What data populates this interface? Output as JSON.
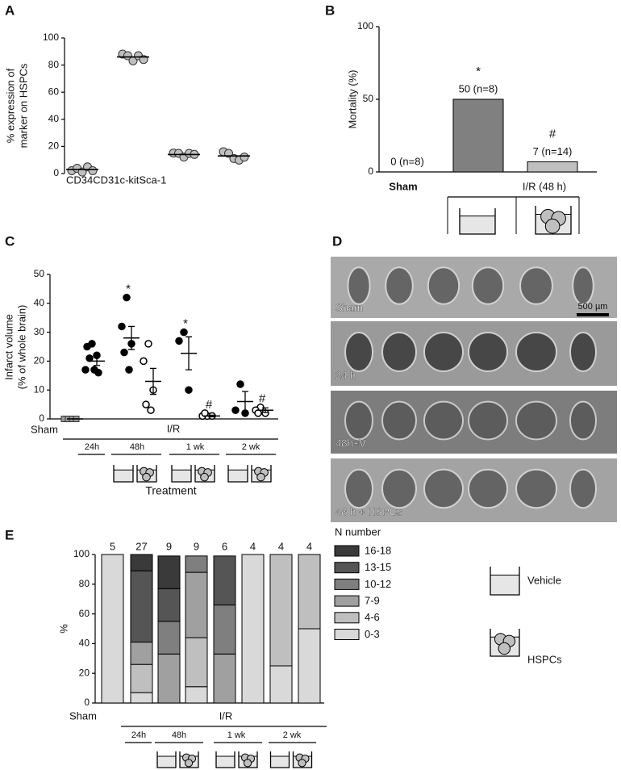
{
  "chart_data": [
    {
      "panel": "A",
      "type": "scatter",
      "ylabel": [
        "% expression of",
        "marker on HSPCs"
      ],
      "categories": [
        "CD34",
        "CD31",
        "c-kit",
        "Sca-1"
      ],
      "points": [
        [
          3,
          3,
          2,
          4,
          3
        ],
        [
          89,
          86,
          84,
          86,
          85
        ],
        [
          16,
          14,
          13,
          14,
          15
        ],
        [
          17,
          14,
          12,
          9,
          13
        ]
      ],
      "means": [
        3,
        86,
        14,
        13
      ],
      "color": "#bfbfbf",
      "ylim": [
        0,
        100
      ],
      "yticks": [
        0,
        20,
        40,
        60,
        80,
        100
      ]
    },
    {
      "panel": "B",
      "type": "bar",
      "ylabel": "Mortality (%)",
      "categories": [
        "Sham",
        null,
        null
      ],
      "group_label": "I/R (48 h)",
      "values": [
        0,
        50,
        7
      ],
      "value_labels": [
        "0 (n=8)",
        "50 (n=8)",
        "7 (n=14)"
      ],
      "annotations": [
        null,
        "*",
        "#"
      ],
      "colors": [
        "#808080",
        "#808080",
        "#bfbfbf"
      ],
      "ylim": [
        0,
        100
      ],
      "yticks": [
        0,
        50,
        100
      ]
    },
    {
      "panel": "C",
      "type": "dot",
      "ylabel": [
        "Infarct volume",
        "(% of whole brain)"
      ],
      "xlabel": "Treatment",
      "sham_label": "Sham",
      "group_label": "I/R",
      "time_labels": [
        "24h",
        "48h",
        "1 wk",
        "2 wk"
      ],
      "groups": [
        {
          "marker": "square",
          "values": [
            0,
            0,
            0,
            0
          ],
          "mean": 0,
          "sem": 0,
          "annotation": null
        },
        {
          "marker": "filled",
          "values": [
            26,
            25,
            22,
            21,
            17,
            17,
            16
          ],
          "mean": 20,
          "sem": 1.5,
          "annotation": null
        },
        {
          "marker": "filled",
          "values": [
            42,
            32,
            26,
            23,
            17
          ],
          "mean": 28,
          "sem": 4,
          "annotation": "*"
        },
        {
          "marker": "open",
          "values": [
            26,
            20,
            10,
            5,
            3
          ],
          "mean": 13,
          "sem": 4.5,
          "annotation": null
        },
        {
          "marker": "filled",
          "values": [
            30,
            27,
            10
          ],
          "mean": 22.7,
          "sem": 5.7,
          "annotation": "*"
        },
        {
          "marker": "open",
          "values": [
            1,
            1,
            1,
            2
          ],
          "mean": 1,
          "sem": 0.3,
          "annotation": "#"
        },
        {
          "marker": "filled",
          "values": [
            12,
            3,
            2
          ],
          "mean": 6,
          "sem": 3.5,
          "annotation": null
        },
        {
          "marker": "open",
          "values": [
            4,
            3,
            2,
            2
          ],
          "mean": 3,
          "sem": 0.8,
          "annotation": "#"
        }
      ],
      "ylim": [
        0,
        50
      ],
      "yticks": [
        0,
        10,
        20,
        30,
        40,
        50
      ]
    },
    {
      "panel": "E",
      "type": "stacked_bar",
      "ylabel": "%",
      "sham_label": "Sham",
      "group_label": "I/R",
      "time_labels": [
        "24h",
        "48h",
        "1 wk",
        "2 wk"
      ],
      "categories": [
        null,
        null,
        null,
        null,
        null,
        null,
        null,
        null
      ],
      "n_labels": [
        "5",
        "27",
        "9",
        "9",
        "6",
        "4",
        "4",
        "4"
      ],
      "legend_title": "N number",
      "series": [
        {
          "name": "0-3",
          "color": "#d9d9d9",
          "values": [
            100,
            7,
            0,
            11,
            0,
            100,
            25,
            50
          ]
        },
        {
          "name": "4-6",
          "color": "#bfbfbf",
          "values": [
            0,
            19,
            0,
            33,
            0,
            0,
            75,
            50
          ]
        },
        {
          "name": "7-9",
          "color": "#a0a0a0",
          "values": [
            0,
            15,
            33,
            44,
            33,
            0,
            0,
            0
          ]
        },
        {
          "name": "10-12",
          "color": "#7f7f7f",
          "values": [
            0,
            0,
            22,
            11,
            33,
            0,
            0,
            0
          ]
        },
        {
          "name": "13-15",
          "color": "#555555",
          "values": [
            0,
            48,
            22,
            0,
            33,
            0,
            0,
            0
          ]
        },
        {
          "name": "16-18",
          "color": "#3a3a3a",
          "values": [
            0,
            11,
            22,
            0,
            0,
            0,
            0,
            0
          ]
        }
      ],
      "ylim": [
        0,
        100
      ],
      "yticks": [
        0,
        20,
        40,
        60,
        80,
        100
      ]
    }
  ],
  "panel_d": {
    "panel": "D",
    "labels": [
      "Sham",
      "24 h",
      "48h+V",
      "48 h + HSPCs"
    ],
    "scale_bar": "500 µm"
  },
  "treatment_legend": [
    "Vehicle",
    "HSPCs"
  ]
}
